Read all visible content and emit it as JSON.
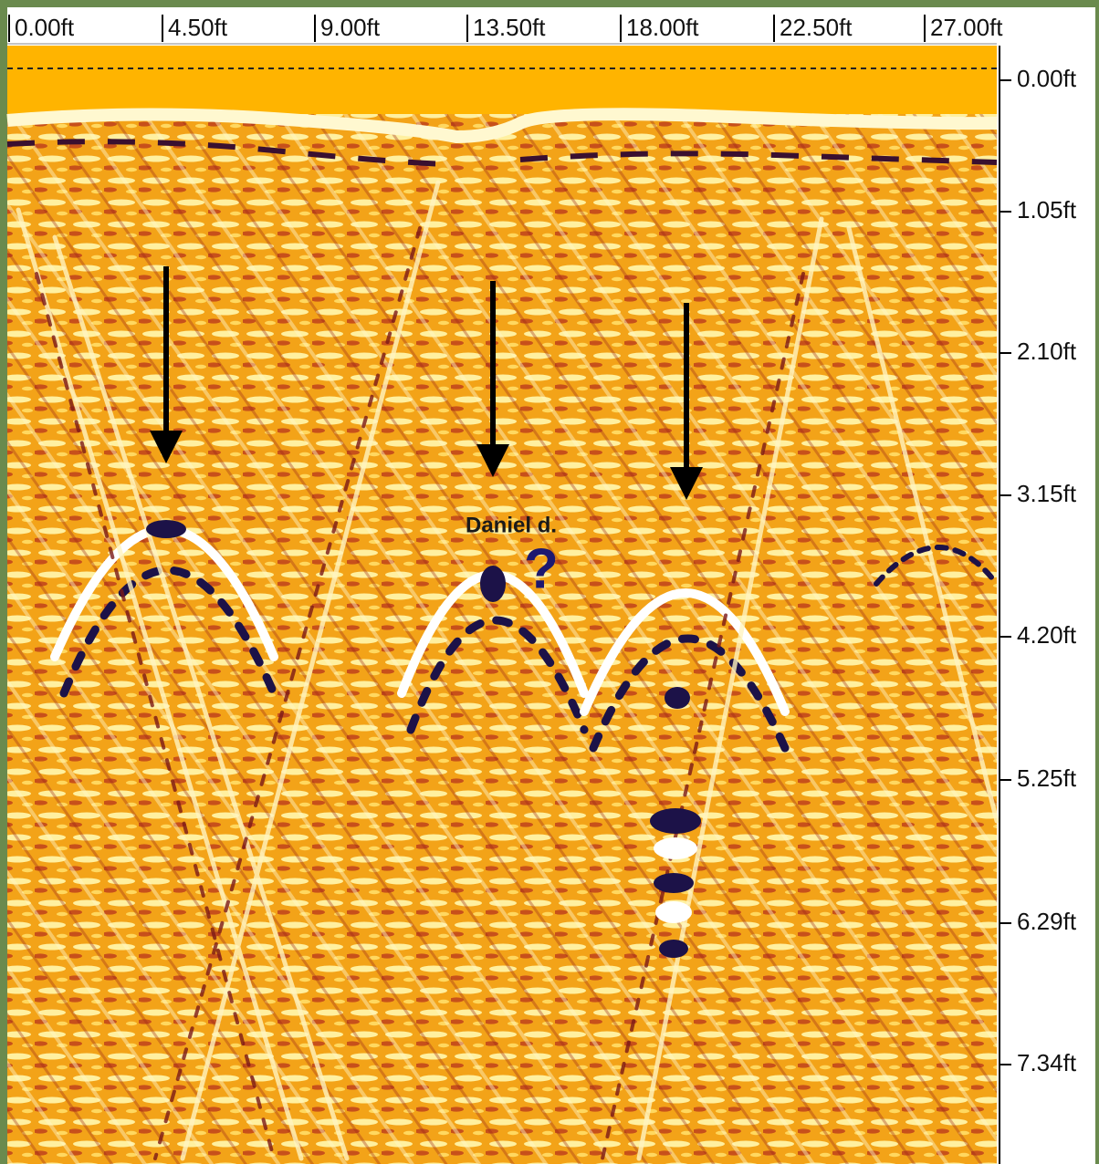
{
  "distance_axis": {
    "labels": [
      "0.00ft",
      "4.50ft",
      "9.00ft",
      "13.50ft",
      "18.00ft",
      "22.50ft",
      "27.00ft"
    ]
  },
  "depth_axis": {
    "labels": [
      "0.00ft",
      "1.05ft",
      "2.10ft",
      "3.15ft",
      "4.20ft",
      "5.25ft",
      "6.29ft",
      "7.34ft"
    ]
  },
  "annotation": {
    "name": "Daniel d.",
    "mark": "?"
  }
}
